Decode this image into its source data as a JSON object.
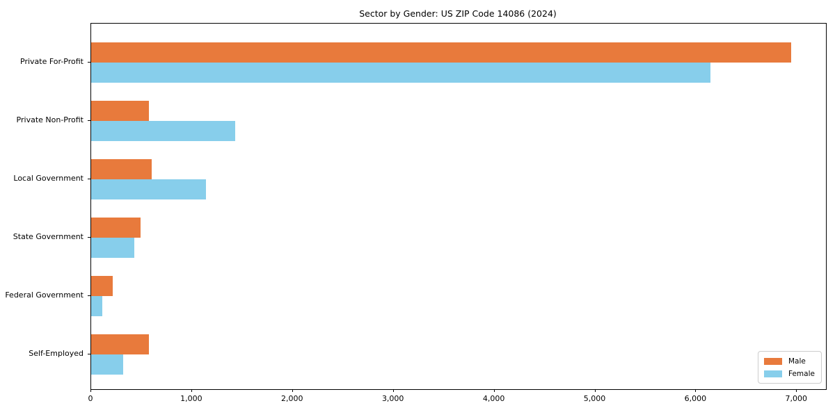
{
  "chart_data": {
    "type": "bar",
    "orientation": "horizontal",
    "title": "Sector by Gender: US ZIP Code 14086 (2024)",
    "categories": [
      "Private For-Profit",
      "Private Non-Profit",
      "Local Government",
      "State Government",
      "Federal Government",
      "Self-Employed"
    ],
    "series": [
      {
        "name": "Male",
        "color": "#E87A3C",
        "values": [
          6940,
          570,
          600,
          490,
          215,
          575
        ]
      },
      {
        "name": "Female",
        "color": "#87CEEB",
        "values": [
          6140,
          1430,
          1140,
          430,
          110,
          315
        ]
      }
    ],
    "xlabel": "",
    "ylabel": "",
    "xlim": [
      0,
      7288
    ],
    "xticks": {
      "values": [
        0,
        1000,
        2000,
        3000,
        4000,
        5000,
        6000,
        7000
      ],
      "labels": [
        "0",
        "1,000",
        "2,000",
        "3,000",
        "4,000",
        "5,000",
        "6,000",
        "7,000"
      ]
    },
    "grid": false,
    "legend": {
      "position": "lower right",
      "entries": [
        "Male",
        "Female"
      ]
    }
  },
  "colors": {
    "male": "#E87A3C",
    "female": "#87CEEB",
    "spine": "#000000",
    "legend_border": "#cccccc",
    "background": "#ffffff"
  }
}
